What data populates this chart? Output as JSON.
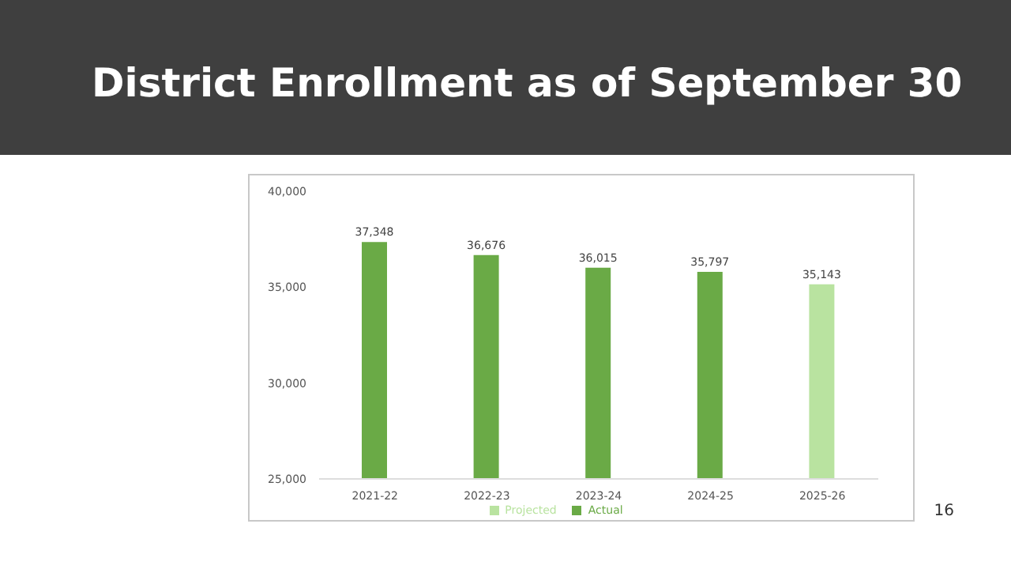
{
  "chart_data": {
    "type": "bar",
    "title": "District Enrollment as of September 30",
    "categories": [
      "2021-22",
      "2022-23",
      "2023-24",
      "2024-25",
      "2025-26"
    ],
    "series": [
      {
        "name": "Projected",
        "color": "#b9e3a0",
        "values": [
          null,
          null,
          null,
          null,
          35143
        ],
        "value_labels": [
          null,
          null,
          null,
          null,
          "35,143"
        ]
      },
      {
        "name": "Actual",
        "color": "#6aaa46",
        "values": [
          37348,
          36676,
          36015,
          35797,
          null
        ],
        "value_labels": [
          "37,348",
          "36,676",
          "36,015",
          "35,797",
          null
        ]
      }
    ],
    "stacked": true,
    "ylim": [
      25000,
      40000
    ],
    "yticks": [
      {
        "value": 25000,
        "label": "25,000"
      },
      {
        "value": 30000,
        "label": "30,000"
      },
      {
        "value": 35000,
        "label": "35,000"
      },
      {
        "value": 40000,
        "label": "40,000"
      }
    ],
    "grid": false,
    "legend": "bottom",
    "annotations": [
      "16"
    ]
  }
}
